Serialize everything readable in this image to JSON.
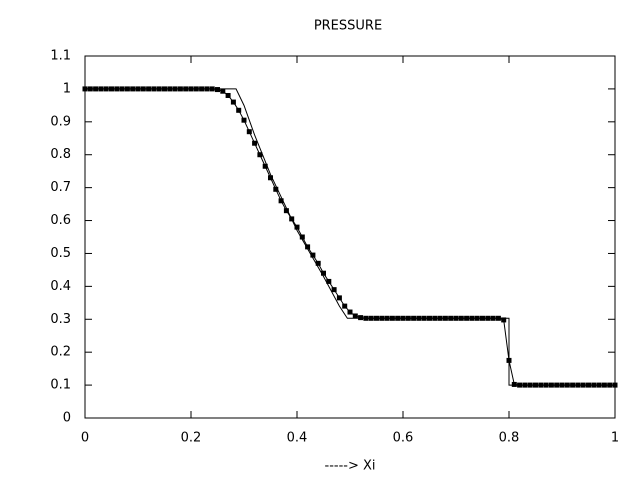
{
  "chart_data": {
    "type": "line",
    "title": "PRESSURE",
    "x_label": "-----> Xi",
    "xlim": [
      0,
      1
    ],
    "xticks": [
      0,
      0.2,
      0.4,
      0.6,
      0.8,
      1
    ],
    "ylim": [
      0,
      1.1
    ],
    "yticks": [
      0,
      0.1,
      0.2,
      0.3,
      0.4,
      0.5,
      0.6,
      0.7,
      0.8,
      0.9,
      1,
      1.1
    ],
    "grid": false,
    "series": [
      {
        "color": "#000000",
        "marker": "square",
        "x": [
          0,
          0.01,
          0.02,
          0.03,
          0.04,
          0.05,
          0.06,
          0.07,
          0.08,
          0.09,
          0.1,
          0.11,
          0.12,
          0.13,
          0.14,
          0.15,
          0.16,
          0.17,
          0.18,
          0.19,
          0.2,
          0.21,
          0.22,
          0.23,
          0.24,
          0.25,
          0.26,
          0.27,
          0.28,
          0.29,
          0.3,
          0.31,
          0.32,
          0.33,
          0.34,
          0.35,
          0.36,
          0.37,
          0.38,
          0.39,
          0.4,
          0.41,
          0.42,
          0.43,
          0.44,
          0.45,
          0.46,
          0.47,
          0.48,
          0.49,
          0.5,
          0.51,
          0.52,
          0.53,
          0.54,
          0.55,
          0.56,
          0.57,
          0.58,
          0.59,
          0.6,
          0.61,
          0.62,
          0.63,
          0.64,
          0.65,
          0.66,
          0.67,
          0.68,
          0.69,
          0.7,
          0.71,
          0.72,
          0.73,
          0.74,
          0.75,
          0.76,
          0.77,
          0.78,
          0.79,
          0.8,
          0.81,
          0.82,
          0.83,
          0.84,
          0.85,
          0.86,
          0.87,
          0.88,
          0.89,
          0.9,
          0.91,
          0.92,
          0.93,
          0.94,
          0.95,
          0.96,
          0.97,
          0.98,
          0.99,
          1
        ],
        "values": [
          1,
          1,
          1,
          1,
          1,
          1,
          1,
          1,
          1,
          1,
          1,
          1,
          1,
          1,
          1,
          1,
          1,
          1,
          1,
          1,
          1,
          1,
          1,
          1,
          1,
          0.998,
          0.993,
          0.98,
          0.96,
          0.935,
          0.905,
          0.87,
          0.835,
          0.8,
          0.765,
          0.73,
          0.695,
          0.66,
          0.63,
          0.605,
          0.58,
          0.55,
          0.52,
          0.495,
          0.47,
          0.44,
          0.415,
          0.39,
          0.365,
          0.34,
          0.322,
          0.31,
          0.305,
          0.303,
          0.303,
          0.303,
          0.303,
          0.303,
          0.303,
          0.303,
          0.303,
          0.303,
          0.303,
          0.303,
          0.303,
          0.303,
          0.303,
          0.303,
          0.303,
          0.303,
          0.303,
          0.303,
          0.303,
          0.303,
          0.303,
          0.303,
          0.303,
          0.303,
          0.303,
          0.298,
          0.175,
          0.102,
          0.1,
          0.1,
          0.1,
          0.1,
          0.1,
          0.1,
          0.1,
          0.1,
          0.1,
          0.1,
          0.1,
          0.1,
          0.1,
          0.1,
          0.1,
          0.1,
          0.1,
          0.1,
          0.1
        ]
      },
      {
        "color": "#000000",
        "x": [
          0,
          0.285,
          0.3,
          0.32,
          0.35,
          0.4,
          0.45,
          0.48,
          0.495,
          0.8,
          0.8,
          1
        ],
        "values": [
          1,
          1,
          0.95,
          0.86,
          0.74,
          0.57,
          0.43,
          0.34,
          0.303,
          0.303,
          0.1,
          0.1
        ]
      }
    ]
  }
}
